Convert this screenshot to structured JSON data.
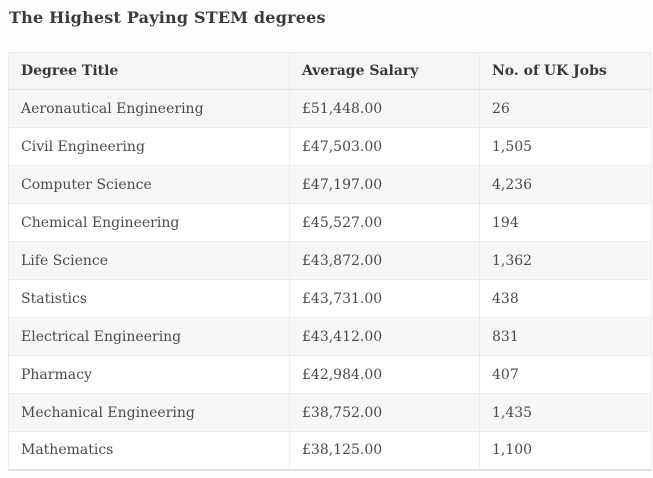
{
  "page": {
    "title": "The Highest Paying STEM degrees"
  },
  "table": {
    "columns": [
      "Degree Title",
      "Average Salary",
      "No. of UK Jobs"
    ],
    "rows": [
      {
        "degree": "Aeronautical Engineering",
        "salary": "£51,448.00",
        "jobs": "26"
      },
      {
        "degree": "Civil Engineering",
        "salary": "£47,503.00",
        "jobs": "1,505"
      },
      {
        "degree": "Computer Science",
        "salary": "£47,197.00",
        "jobs": "4,236"
      },
      {
        "degree": "Chemical Engineering",
        "salary": "£45,527.00",
        "jobs": "194"
      },
      {
        "degree": "Life Science",
        "salary": "£43,872.00",
        "jobs": "1,362"
      },
      {
        "degree": "Statistics",
        "salary": "£43,731.00",
        "jobs": "438"
      },
      {
        "degree": "Electrical Engineering",
        "salary": "£43,412.00",
        "jobs": "831"
      },
      {
        "degree": "Pharmacy",
        "salary": "£42,984.00",
        "jobs": "407"
      },
      {
        "degree": "Mechanical Engineering",
        "salary": "£38,752.00",
        "jobs": "1,435"
      },
      {
        "degree": "Mathematics",
        "salary": "£38,125.00",
        "jobs": "1,100"
      }
    ]
  },
  "chart_data": {
    "type": "table",
    "title": "The Highest Paying STEM degrees",
    "columns": [
      "Degree Title",
      "Average Salary",
      "No. of UK Jobs"
    ],
    "rows": [
      [
        "Aeronautical Engineering",
        "£51,448.00",
        26
      ],
      [
        "Civil Engineering",
        "£47,503.00",
        1505
      ],
      [
        "Computer Science",
        "£47,197.00",
        4236
      ],
      [
        "Chemical Engineering",
        "£45,527.00",
        194
      ],
      [
        "Life Science",
        "£43,872.00",
        1362
      ],
      [
        "Statistics",
        "£43,731.00",
        438
      ],
      [
        "Electrical Engineering",
        "£43,412.00",
        831
      ],
      [
        "Pharmacy",
        "£42,984.00",
        407
      ],
      [
        "Mechanical Engineering",
        "£38,752.00",
        1435
      ],
      [
        "Mathematics",
        "£38,125.00",
        1100
      ]
    ],
    "salaries_gbp": [
      51448,
      47503,
      47197,
      45527,
      43872,
      43731,
      43412,
      42984,
      38752,
      38125
    ],
    "uk_jobs": [
      26,
      1505,
      4236,
      194,
      1362,
      438,
      831,
      407,
      1435,
      1100
    ]
  },
  "colors": {
    "page_background": "#fdfdfc",
    "header_row_background": "#f6f6f4",
    "alt_row_background": "#f7f7f6",
    "row_background": "#fffffe",
    "border": "#ececea",
    "title_text": "#3a3a3a",
    "cell_text": "#4a4a4a"
  }
}
